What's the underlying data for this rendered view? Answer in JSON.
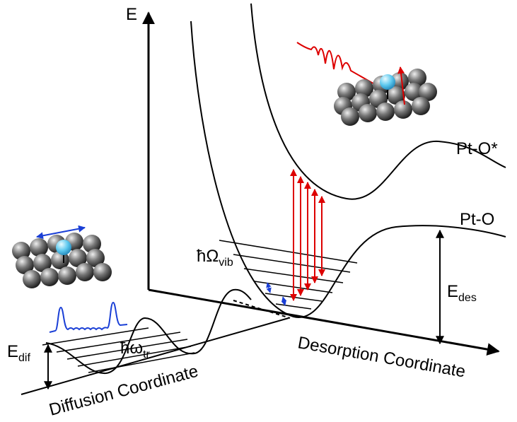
{
  "axes": {
    "energy": "E",
    "desorption": "Desorption Coordinate",
    "diffusion": "Diffusion Coordinate"
  },
  "curves": {
    "excited": "Pt-O*",
    "ground": "Pt-O"
  },
  "labels": {
    "vib": {
      "symbol": "ħΩ",
      "sub": "vib"
    },
    "tr": {
      "symbol": "ħω",
      "sub": "tr"
    },
    "des": {
      "symbol": "E",
      "sub": "des"
    },
    "dif": {
      "symbol": "E",
      "sub": "dif"
    }
  }
}
